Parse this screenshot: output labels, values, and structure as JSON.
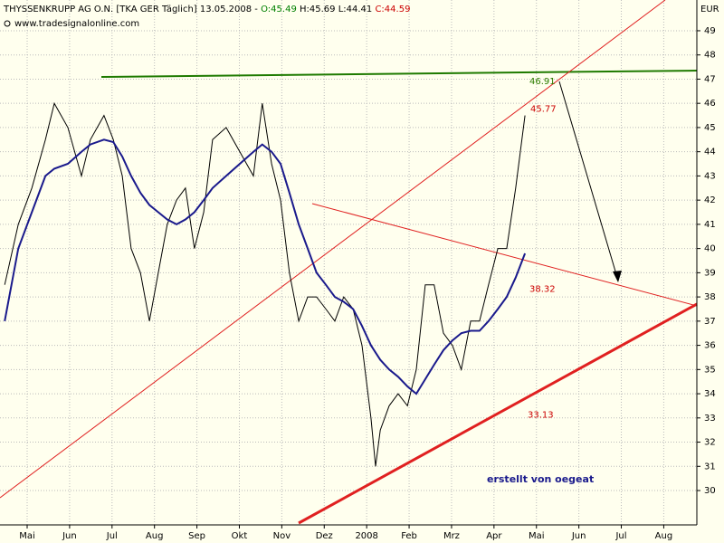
{
  "chart_data": {
    "type": "line",
    "title_parts": [
      "THYSSENKRUPP AG O.N. [TKA GER  Täglich] 13.05.2008 -",
      "O:45.49",
      "H:45.69 L:44.41",
      "C:44.59"
    ],
    "title_colors": [
      "#000000",
      "#008000",
      "#000000",
      "#cc0000"
    ],
    "subtitle": "www.tradesignalonline.com",
    "y_unit": "EUR",
    "annotation": "erstellt von oegeat",
    "grid": true,
    "xlim": [
      -0.64,
      15.78
    ],
    "xticks": [
      {
        "value": 0,
        "label": "Mai"
      },
      {
        "value": 1,
        "label": "Jun"
      },
      {
        "value": 2,
        "label": "Jul"
      },
      {
        "value": 3,
        "label": "Aug"
      },
      {
        "value": 4,
        "label": "Sep"
      },
      {
        "value": 5,
        "label": "Okt"
      },
      {
        "value": 6,
        "label": "Nov"
      },
      {
        "value": 7,
        "label": "Dez"
      },
      {
        "value": 8,
        "label": "2008"
      },
      {
        "value": 9,
        "label": "Feb"
      },
      {
        "value": 10,
        "label": "Mrz"
      },
      {
        "value": 11,
        "label": "Apr"
      },
      {
        "value": 12,
        "label": "Mai"
      },
      {
        "value": 13,
        "label": "Jun"
      },
      {
        "value": 14,
        "label": "Jul"
      },
      {
        "value": 15,
        "label": "Aug"
      }
    ],
    "ylim": [
      28.58,
      50.27
    ],
    "yticks": [
      30,
      31,
      32,
      33,
      34,
      35,
      36,
      37,
      38,
      39,
      40,
      41,
      42,
      43,
      44,
      45,
      46,
      47,
      48,
      49
    ],
    "x": [
      -0.53,
      -0.21,
      0.11,
      0.43,
      0.64,
      0.96,
      1.28,
      1.49,
      1.81,
      2.03,
      2.24,
      2.45,
      2.67,
      2.88,
      3.09,
      3.3,
      3.52,
      3.73,
      3.94,
      4.16,
      4.37,
      4.69,
      5.01,
      5.33,
      5.54,
      5.76,
      5.97,
      6.18,
      6.4,
      6.61,
      6.82,
      7.04,
      7.25,
      7.46,
      7.68,
      7.89,
      8.1,
      8.21,
      8.32,
      8.53,
      8.74,
      8.96,
      9.17,
      9.38,
      9.59,
      9.81,
      10.02,
      10.23,
      10.45,
      10.66,
      10.87,
      11.09,
      11.3,
      11.51,
      11.73
    ],
    "series": [
      {
        "color": "#000000",
        "width": 1,
        "values": [
          38.5,
          41,
          42.5,
          44.5,
          46,
          45,
          43,
          44.5,
          45.5,
          44.5,
          43,
          40,
          39,
          37,
          39,
          41,
          42,
          42.5,
          40,
          41.5,
          44.5,
          45,
          44,
          43,
          46,
          43.5,
          42,
          39,
          37,
          38,
          38,
          37.5,
          37,
          38,
          37.5,
          36,
          33,
          31,
          32.5,
          33.5,
          34,
          33.5,
          35,
          38.5,
          38.5,
          36.5,
          36,
          35,
          37,
          37,
          38.5,
          40,
          40,
          42.5,
          45.5
        ]
      },
      {
        "color": "#1a1a8c",
        "width": 2,
        "values": [
          37,
          40,
          41.5,
          43,
          43.3,
          43.5,
          44,
          44.3,
          44.5,
          44.4,
          43.8,
          43,
          42.3,
          41.8,
          41.5,
          41.2,
          41,
          41.2,
          41.5,
          42,
          42.5,
          43,
          43.5,
          44,
          44.3,
          44,
          43.5,
          42.3,
          41,
          40,
          39,
          38.5,
          38,
          37.8,
          37.5,
          36.8,
          36,
          35.7,
          35.4,
          35,
          34.7,
          34.3,
          34,
          34.6,
          35.2,
          35.8,
          36.2,
          36.5,
          36.6,
          36.6,
          37,
          37.5,
          38,
          38.8,
          39.8
        ]
      }
    ],
    "levels": [
      {
        "value": 46.91,
        "color": "#2e7d00"
      },
      {
        "value": 45.77,
        "color": "#cc0000"
      },
      {
        "value": 38.32,
        "color": "#cc0000"
      },
      {
        "value": 33.13,
        "color": "#cc0000"
      }
    ]
  }
}
